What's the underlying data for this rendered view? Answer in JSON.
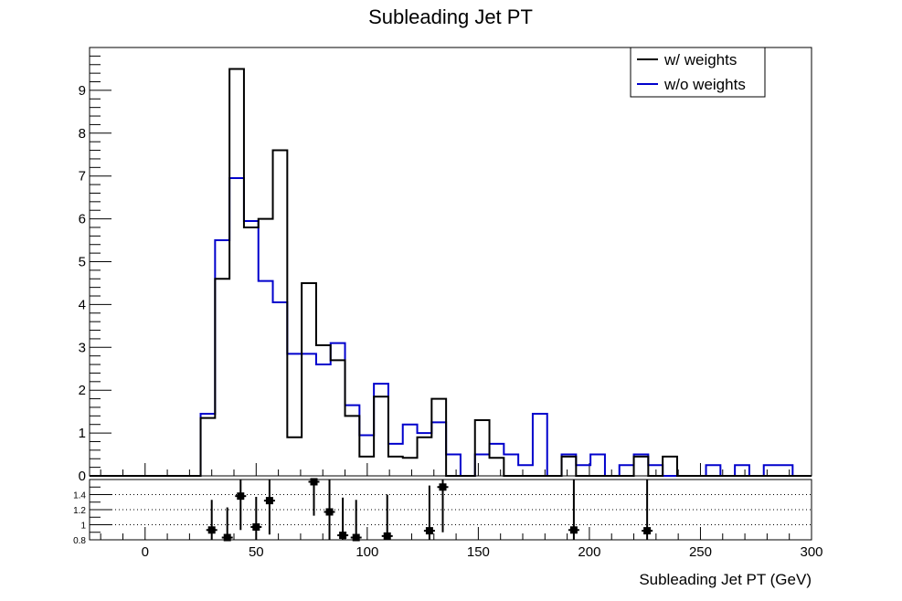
{
  "chart_data": {
    "type": "line",
    "title": "Subleading Jet PT",
    "xlabel": "Subleading Jet PT (GeV)",
    "ylabel": "",
    "xlim": [
      -25,
      300
    ],
    "ylim": [
      0,
      10
    ],
    "bin_edges": [
      25,
      31.5,
      38,
      44.5,
      51,
      57.5,
      64,
      70.5,
      77,
      83.5,
      90,
      96.5,
      103,
      109.5,
      116,
      122.5,
      129,
      135.5,
      142,
      148.5,
      155,
      161.5,
      168,
      174.5,
      181,
      187.5,
      194,
      200.5,
      207,
      213.5,
      220,
      226.5,
      233,
      239.5,
      246,
      252.5,
      259,
      265.5,
      272,
      278.5,
      285,
      291.5
    ],
    "x_ticks": [
      "0",
      "50",
      "100",
      "150",
      "200",
      "250",
      "300"
    ],
    "y_ticks": [
      "0",
      "1",
      "2",
      "3",
      "4",
      "5",
      "6",
      "7",
      "8",
      "9"
    ],
    "series": [
      {
        "name": "w/ weights",
        "color": "#000000",
        "values": [
          1.35,
          4.6,
          9.5,
          5.8,
          6.0,
          7.6,
          0.9,
          4.5,
          3.05,
          2.7,
          1.4,
          0.45,
          1.85,
          0.45,
          0.42,
          0.9,
          1.8,
          0,
          0,
          1.3,
          0.42,
          0,
          0,
          0,
          0,
          0.45,
          0,
          0,
          0,
          0,
          0.45,
          0,
          0.45,
          0,
          0,
          0,
          0,
          0,
          0,
          0,
          0
        ]
      },
      {
        "name": "w/o weights",
        "color": "#0000cc",
        "values": [
          1.45,
          5.5,
          6.95,
          5.95,
          4.55,
          4.05,
          2.85,
          2.85,
          2.6,
          3.1,
          1.65,
          0.95,
          2.15,
          0.75,
          1.2,
          1.0,
          1.25,
          0.5,
          0,
          0.5,
          0.75,
          0.5,
          0.25,
          1.45,
          0,
          0.5,
          0.25,
          0.5,
          0,
          0.25,
          0.5,
          0.25,
          0,
          0,
          0,
          0.25,
          0,
          0.25,
          0,
          0.25,
          0.25
        ]
      }
    ],
    "ratio": {
      "ylim": [
        0.8,
        1.6
      ],
      "y_ticks": [
        "0.8",
        "1",
        "1.2",
        "1.4"
      ],
      "gridlines": [
        1.0,
        1.2,
        1.4
      ],
      "points": [
        {
          "x": 30,
          "y": 0.93,
          "err": 0.4
        },
        {
          "x": 37,
          "y": 0.83,
          "err": 0.4
        },
        {
          "x": 43,
          "y": 1.38,
          "err": 0.45
        },
        {
          "x": 50,
          "y": 0.97,
          "err": 0.4
        },
        {
          "x": 56,
          "y": 1.32,
          "err": 0.45
        },
        {
          "x": 76,
          "y": 1.57,
          "err": 0.45
        },
        {
          "x": 83,
          "y": 1.17,
          "err": 0.45
        },
        {
          "x": 89,
          "y": 0.86,
          "err": 0.5
        },
        {
          "x": 95,
          "y": 0.83,
          "err": 0.5
        },
        {
          "x": 109,
          "y": 0.85,
          "err": 0.55
        },
        {
          "x": 128,
          "y": 0.92,
          "err": 0.6
        },
        {
          "x": 134,
          "y": 1.5,
          "err": 0.6
        },
        {
          "x": 193,
          "y": 0.93,
          "err": 0.7
        },
        {
          "x": 226,
          "y": 0.92,
          "err": 0.7
        }
      ]
    },
    "legend": {
      "position": "top-right"
    }
  }
}
